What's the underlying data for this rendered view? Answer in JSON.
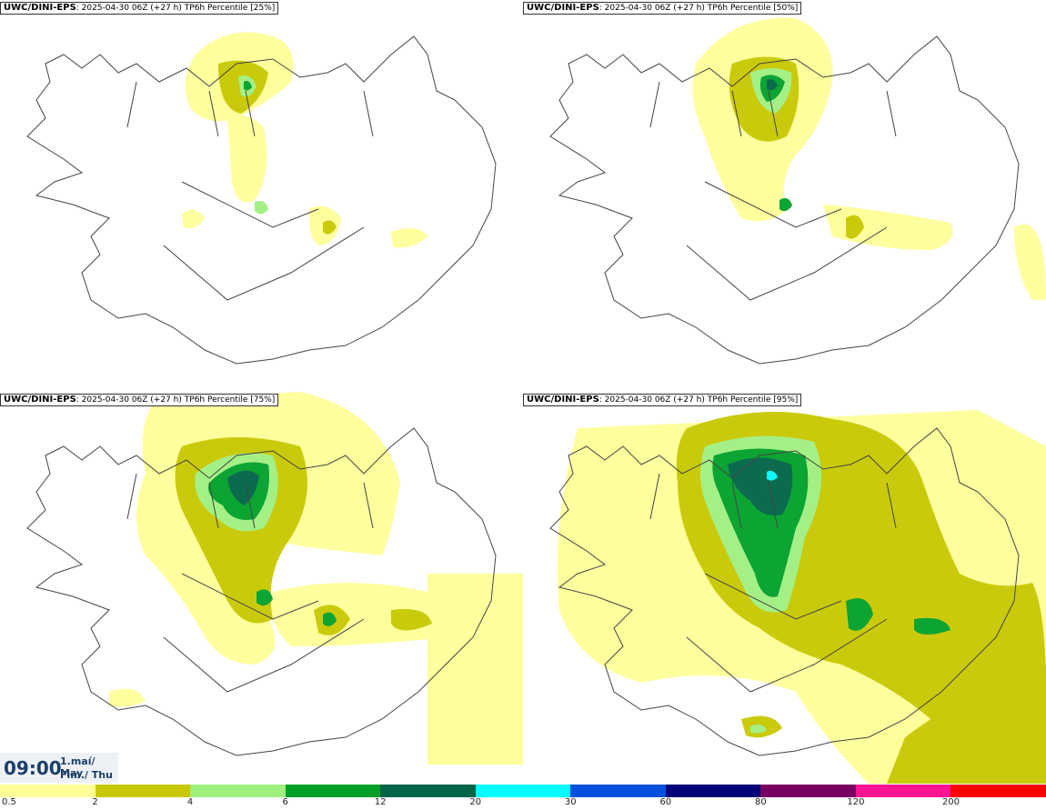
{
  "panels": [
    {
      "model": "UWC/DINI-EPS",
      "meta": ": 2025-04-30 06Z (+27 h)",
      "product": "TP6h Percentile [25%]",
      "percentile": 25
    },
    {
      "model": "UWC/DINI-EPS",
      "meta": ": 2025-04-30 06Z (+27 h)",
      "product": "TP6h Percentile [50%]",
      "percentile": 50
    },
    {
      "model": "UWC/DINI-EPS",
      "meta": ": 2025-04-30 06Z (+27 h)",
      "product": "TP6h Percentile [75%]",
      "percentile": 75
    },
    {
      "model": "UWC/DINI-EPS",
      "meta": ": 2025-04-30 06Z (+27 h)",
      "product": "TP6h Percentile [95%]",
      "percentile": 95
    }
  ],
  "time": {
    "clock": "09:00",
    "date_line": "1.maí/ May",
    "day_line": "Fim./ Thu"
  },
  "legend": {
    "labels": [
      "0.5",
      "2",
      "4",
      "6",
      "12",
      "20",
      "30",
      "60",
      "80",
      "120",
      "200"
    ],
    "colors": [
      "#ffff99",
      "#c8c800",
      "#a0f080",
      "#00a028",
      "#006446",
      "#00ffff",
      "#0050dc",
      "#000078",
      "#780064",
      "#ff1493",
      "#ff0000"
    ]
  }
}
